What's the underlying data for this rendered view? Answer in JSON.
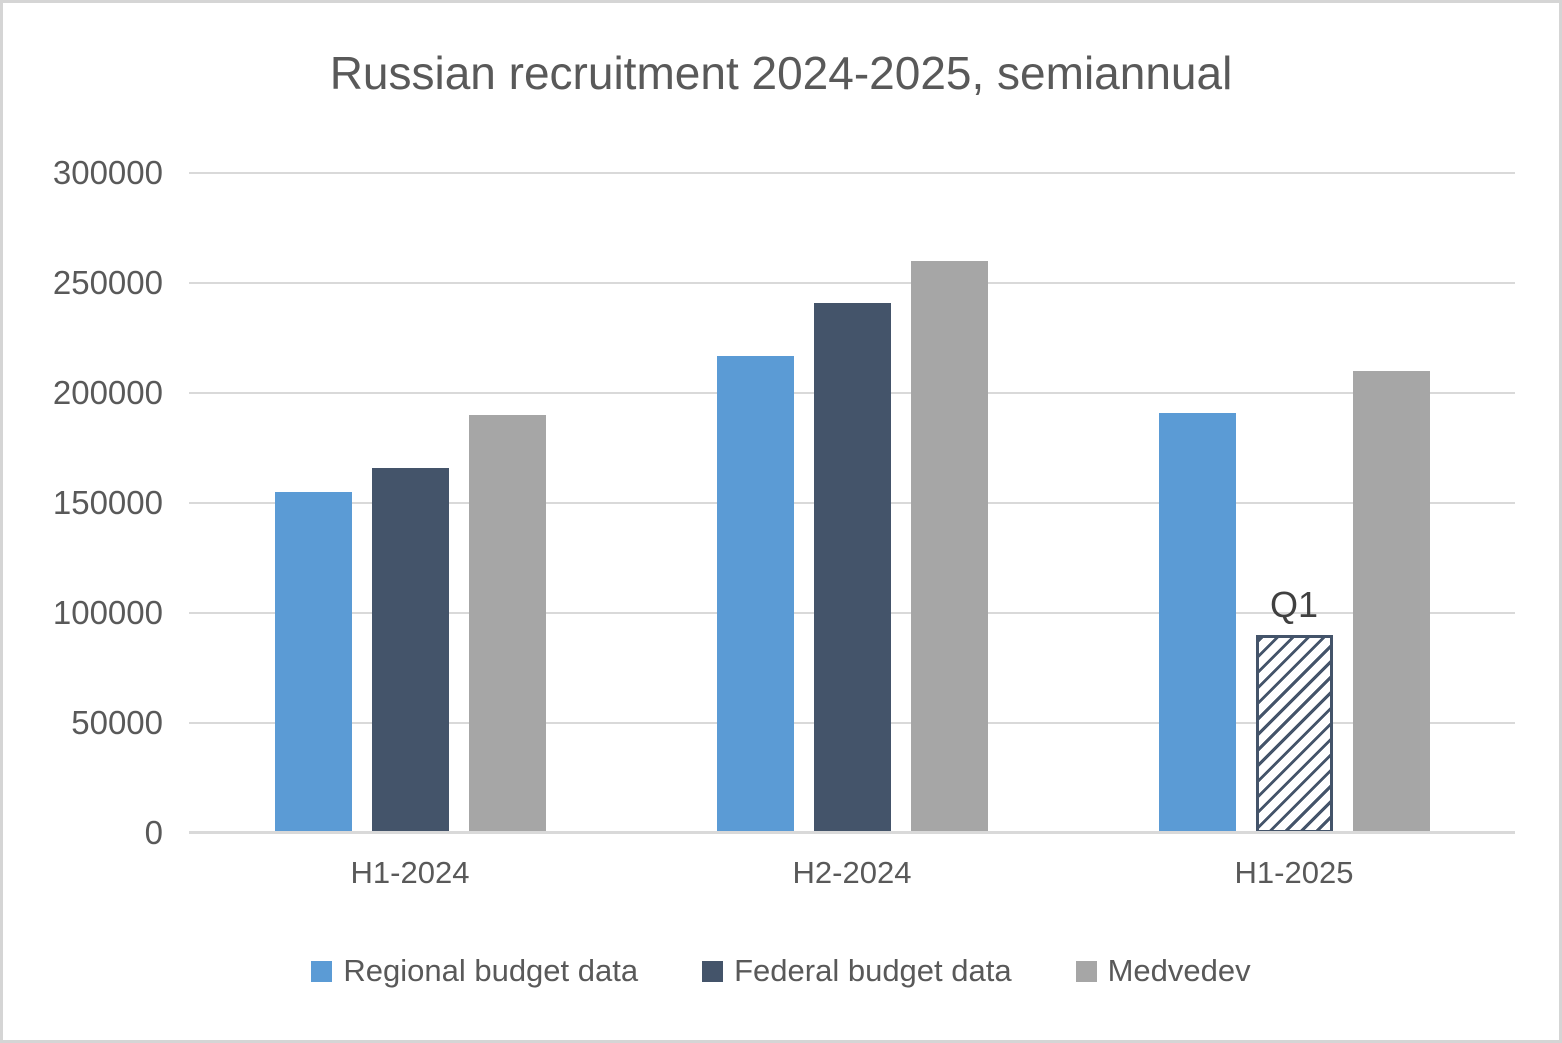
{
  "chart_data": {
    "type": "bar",
    "title": "Russian recruitment 2024-2025, semiannual",
    "categories": [
      "H1-2024",
      "H2-2024",
      "H1-2025"
    ],
    "series": [
      {
        "name": "Regional budget data",
        "color": "#5B9BD5",
        "values": [
          155000,
          217000,
          191000
        ]
      },
      {
        "name": "Federal budget data",
        "color": "#44546A",
        "values": [
          166000,
          241000,
          null
        ]
      },
      {
        "name": "Medvedev",
        "color": "#A6A6A6",
        "values": [
          190000,
          260000,
          210000
        ]
      }
    ],
    "partial_bar": {
      "category": "H1-2025",
      "series": "Federal budget data",
      "label": "Q1",
      "value": 90000,
      "fill": "hatched-upward-diagonal",
      "hatch_color": "#44546A",
      "fill_background": "#FFFFFF"
    },
    "ylim": [
      0,
      300000
    ],
    "y_ticks": [
      0,
      50000,
      100000,
      150000,
      200000,
      250000,
      300000
    ],
    "xlabel": "",
    "ylabel": "",
    "grid": true,
    "legend": [
      "Regional budget data",
      "Federal budget data",
      "Medvedev"
    ],
    "legend_position": "bottom",
    "colors": {
      "text": "#595959",
      "annotation_text": "#404040",
      "gridline": "#D9D9D9",
      "axis_line": "#D9D9D9",
      "background": "#FFFFFF",
      "frame_border": "#D5D5D5"
    }
  }
}
